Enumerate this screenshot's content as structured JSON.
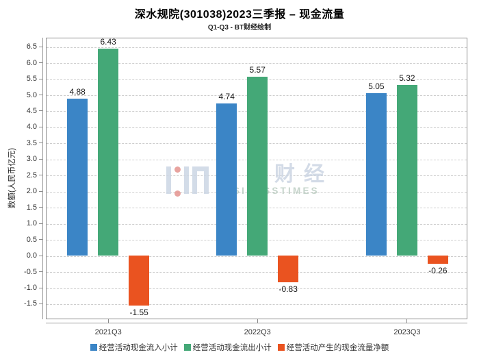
{
  "title": "深水规院(301038)2023三季报 – 现金流量",
  "subtitle": "Q1-Q3 - BT财经绘制",
  "watermark": {
    "brand_cn": "ＢＴ财经",
    "brand_en": "BUSINESSTIMES"
  },
  "chart_data": {
    "type": "bar",
    "categories": [
      "2021Q3",
      "2022Q3",
      "2023Q3"
    ],
    "series": [
      {
        "name": "经营活动现金流入小计",
        "color": "#3b85c6",
        "values": [
          4.88,
          4.74,
          5.05
        ]
      },
      {
        "name": "经营活动现金流出小计",
        "color": "#44a877",
        "values": [
          6.43,
          5.57,
          5.32
        ]
      },
      {
        "name": "经营活动产生的现金流量净额",
        "color": "#ea5320",
        "values": [
          -1.55,
          -0.83,
          -0.26
        ]
      }
    ],
    "xlabel": "",
    "ylabel": "数额(人民币亿元)",
    "ylim": [
      -1.98,
      6.78
    ],
    "yticks": {
      "min": -1.5,
      "max": 6.5,
      "step": 0.5
    },
    "grid": true,
    "grid_style": "dashed",
    "legend_position": "bottom"
  }
}
